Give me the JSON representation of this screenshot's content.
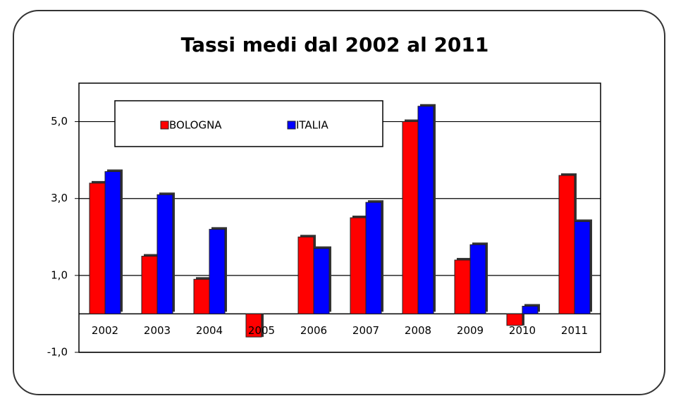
{
  "chart_data": {
    "type": "bar",
    "title": "Tassi medi dal 2002 al 2011",
    "categories": [
      "2002",
      "2003",
      "2004",
      "2005",
      "2006",
      "2007",
      "2008",
      "2009",
      "2010",
      "2011"
    ],
    "series": [
      {
        "name": "BOLOGNA",
        "color": "#ff0000",
        "values": [
          3.4,
          1.5,
          0.9,
          -0.6,
          2.0,
          2.5,
          5.0,
          1.4,
          -0.3,
          3.6
        ]
      },
      {
        "name": "ITALIA",
        "color": "#0000ff",
        "values": [
          3.7,
          3.1,
          2.2,
          0,
          1.7,
          2.9,
          5.4,
          1.8,
          0.2,
          2.4
        ]
      }
    ],
    "ylim": [
      -1,
      6
    ],
    "yticks": [
      {
        "value": -1,
        "label": "-1,0"
      },
      {
        "value": 1,
        "label": "1,0"
      },
      {
        "value": 3,
        "label": "3,0"
      },
      {
        "value": 5,
        "label": "5,0"
      }
    ],
    "grid": true,
    "legend": "top"
  }
}
